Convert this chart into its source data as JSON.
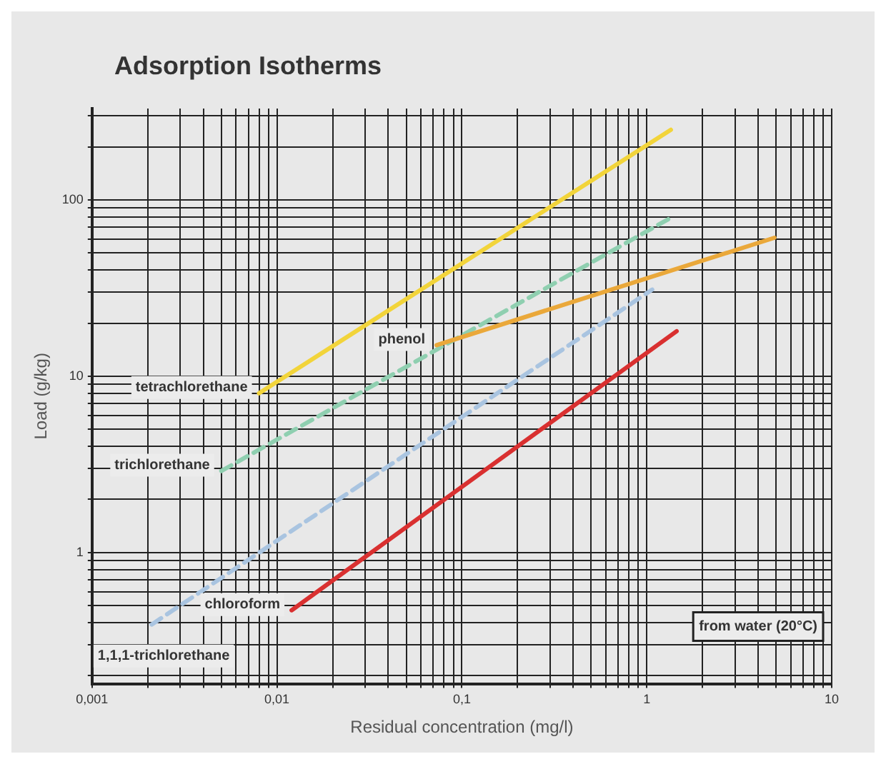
{
  "chart_data": {
    "type": "line",
    "title": "Adsorption Isotherms",
    "xlabel": "Residual concentration (mg/l)",
    "ylabel": "Load (g/kg)",
    "log": "xy",
    "grid": true,
    "legend": false,
    "marker": "none",
    "xlim": [
      0.001,
      10
    ],
    "ylim": [
      0.18,
      330
    ],
    "xticks": [
      {
        "value": 0.001,
        "label": "0,001"
      },
      {
        "value": 0.002,
        "label": null
      },
      {
        "value": 0.003,
        "label": null
      },
      {
        "value": 0.004,
        "label": null
      },
      {
        "value": 0.005,
        "label": null
      },
      {
        "value": 0.006,
        "label": null
      },
      {
        "value": 0.007,
        "label": null
      },
      {
        "value": 0.008,
        "label": null
      },
      {
        "value": 0.009,
        "label": null
      },
      {
        "value": 0.01,
        "label": "0,01"
      },
      {
        "value": 0.02,
        "label": null
      },
      {
        "value": 0.03,
        "label": null
      },
      {
        "value": 0.04,
        "label": null
      },
      {
        "value": 0.05,
        "label": null
      },
      {
        "value": 0.06,
        "label": null
      },
      {
        "value": 0.07,
        "label": null
      },
      {
        "value": 0.08,
        "label": null
      },
      {
        "value": 0.09,
        "label": null
      },
      {
        "value": 0.1,
        "label": "0,1"
      },
      {
        "value": 0.2,
        "label": null
      },
      {
        "value": 0.3,
        "label": null
      },
      {
        "value": 0.4,
        "label": null
      },
      {
        "value": 0.5,
        "label": null
      },
      {
        "value": 0.6,
        "label": null
      },
      {
        "value": 0.7,
        "label": null
      },
      {
        "value": 0.8,
        "label": null
      },
      {
        "value": 0.9,
        "label": null
      },
      1,
      {
        "value": 2,
        "label": null
      },
      {
        "value": 3,
        "label": null
      },
      {
        "value": 4,
        "label": null
      },
      {
        "value": 5,
        "label": null
      },
      {
        "value": 6,
        "label": null
      },
      {
        "value": 7,
        "label": null
      },
      {
        "value": 8,
        "label": null
      },
      {
        "value": 9,
        "label": null
      },
      10
    ],
    "yticks": [
      {
        "value": 0.2,
        "label": null
      },
      {
        "value": 0.3,
        "label": null
      },
      {
        "value": 0.4,
        "label": null
      },
      {
        "value": 0.5,
        "label": null
      },
      {
        "value": 0.6,
        "label": null
      },
      {
        "value": 0.7,
        "label": null
      },
      {
        "value": 0.8,
        "label": null
      },
      {
        "value": 0.9,
        "label": null
      },
      1,
      {
        "value": 2,
        "label": null
      },
      {
        "value": 3,
        "label": null
      },
      {
        "value": 4,
        "label": null
      },
      {
        "value": 5,
        "label": null
      },
      {
        "value": 6,
        "label": null
      },
      {
        "value": 7,
        "label": null
      },
      {
        "value": 8,
        "label": null
      },
      {
        "value": 9,
        "label": null
      },
      10,
      {
        "value": 20,
        "label": null
      },
      {
        "value": 30,
        "label": null
      },
      {
        "value": 40,
        "label": null
      },
      {
        "value": 50,
        "label": null
      },
      {
        "value": 60,
        "label": null
      },
      {
        "value": 70,
        "label": null
      },
      {
        "value": 80,
        "label": null
      },
      {
        "value": 90,
        "label": null
      },
      100,
      {
        "value": 200,
        "label": null
      },
      {
        "value": 300,
        "label": null
      }
    ],
    "series": [
      {
        "name": "tetrachlorethane",
        "color": "#f2d43a",
        "x": [
          0.008,
          1.35
        ],
        "values": [
          8,
          250
        ]
      },
      {
        "name": "phenol",
        "color": "#eaa83a",
        "x": [
          0.073,
          4.9
        ],
        "values": [
          15,
          61
        ]
      },
      {
        "name": "trichlorethane",
        "color": "#8fcfb0",
        "line_style": "dashed",
        "x": [
          0.005,
          1.4
        ],
        "values": [
          2.9,
          81
        ]
      },
      {
        "name": "1,1,1-trichlorethane",
        "color": "#a9c4e0",
        "line_style": "dashed",
        "x": [
          0.0021,
          1.07
        ],
        "values": [
          0.39,
          31
        ]
      },
      {
        "name": "chloroform",
        "color": "#d93030",
        "x": [
          0.012,
          1.45
        ],
        "values": [
          0.47,
          18
        ]
      }
    ],
    "annotations": [
      "from water (20°C)"
    ]
  }
}
